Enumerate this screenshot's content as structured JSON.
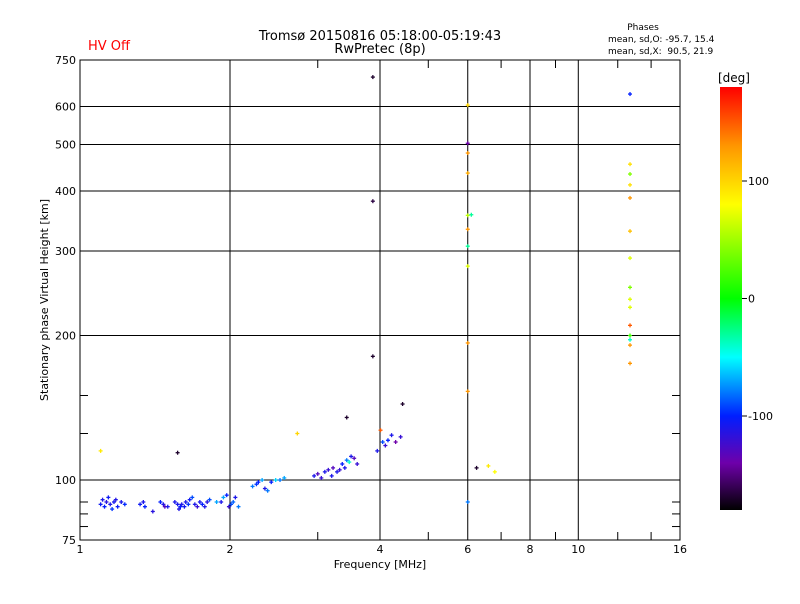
{
  "header": {
    "title": "Tromsø 20150816 05:18:00-05:19:43",
    "subtitle": "RwPretec (8p)",
    "hv_status": "HV Off",
    "hv_color": "#ff0000",
    "phases": {
      "heading": "Phases",
      "o_line": "mean, sd,O: -95.7, 15.4",
      "x_line": "mean, sd,X:  90.5, 21.9"
    }
  },
  "chart_data": {
    "type": "scatter",
    "title": "Tromsø 20150816 05:18:00-05:19:43",
    "xlabel": "Frequency [MHz]",
    "ylabel": "Stationary phase Virtual Height [km]",
    "xscale": "log",
    "yscale": "log",
    "xlim": [
      1,
      16
    ],
    "ylim": [
      75,
      750
    ],
    "grid": true,
    "xticks": [
      1,
      2,
      4,
      6,
      8,
      10,
      16
    ],
    "xtick_labels": [
      "1",
      "2",
      "4",
      "6",
      "8",
      "10",
      "16"
    ],
    "xgrid": [
      2,
      4,
      6,
      8,
      10
    ],
    "yticks": [
      75,
      100,
      200,
      300,
      400,
      500,
      600,
      750
    ],
    "ytick_labels": [
      "75",
      "100",
      "200",
      "300",
      "400",
      "500",
      "600",
      "750"
    ],
    "ygrid": [
      100,
      200,
      300,
      400,
      500,
      600
    ],
    "colorbar": {
      "label": "[deg]",
      "range": [
        -180,
        180
      ],
      "ticks": [
        100,
        0,
        -100
      ],
      "tick_labels": [
        "100",
        "0",
        "-100"
      ]
    },
    "point_fields": [
      "frequency_mhz",
      "height_km",
      "phase_deg"
    ],
    "points": [
      [
        1.1,
        89,
        -105
      ],
      [
        1.11,
        91,
        -110
      ],
      [
        1.12,
        88,
        -100
      ],
      [
        1.13,
        90,
        -115
      ],
      [
        1.14,
        92,
        -105
      ],
      [
        1.15,
        89,
        -110
      ],
      [
        1.16,
        87,
        -95
      ],
      [
        1.17,
        90,
        -108
      ],
      [
        1.18,
        91,
        -112
      ],
      [
        1.19,
        88,
        -104
      ],
      [
        1.21,
        90,
        -110
      ],
      [
        1.23,
        89,
        -98
      ],
      [
        1.32,
        89,
        -105
      ],
      [
        1.34,
        90,
        -110
      ],
      [
        1.35,
        88,
        -100
      ],
      [
        1.4,
        86,
        -115
      ],
      [
        1.45,
        90,
        -100
      ],
      [
        1.47,
        89,
        -112
      ],
      [
        1.48,
        88,
        -130
      ],
      [
        1.5,
        88,
        -110
      ],
      [
        1.55,
        90,
        -110
      ],
      [
        1.57,
        89,
        -108
      ],
      [
        1.58,
        87,
        -112
      ],
      [
        1.59,
        88,
        -100
      ],
      [
        1.6,
        89,
        -110
      ],
      [
        1.62,
        88,
        -106
      ],
      [
        1.63,
        90,
        -110
      ],
      [
        1.65,
        89,
        -95
      ],
      [
        1.66,
        91,
        -105
      ],
      [
        1.68,
        92,
        -90
      ],
      [
        1.7,
        89,
        -110
      ],
      [
        1.72,
        88,
        -120
      ],
      [
        1.74,
        90,
        -108
      ],
      [
        1.76,
        89,
        -100
      ],
      [
        1.78,
        88,
        -110
      ],
      [
        1.8,
        90,
        -115
      ],
      [
        1.82,
        91,
        -90
      ],
      [
        1.88,
        90,
        -70
      ],
      [
        1.92,
        90,
        -110
      ],
      [
        1.94,
        92,
        -70
      ],
      [
        1.97,
        93,
        -100
      ],
      [
        1.99,
        88,
        -120
      ],
      [
        2.01,
        89,
        -90
      ],
      [
        2.03,
        90,
        -85
      ],
      [
        2.05,
        92,
        -110
      ],
      [
        2.08,
        88,
        -80
      ],
      [
        2.22,
        97,
        -80
      ],
      [
        2.26,
        98,
        -95
      ],
      [
        2.28,
        99,
        -100
      ],
      [
        2.32,
        100,
        -70
      ],
      [
        2.35,
        96,
        -110
      ],
      [
        2.38,
        95,
        -80
      ],
      [
        2.42,
        99,
        -100
      ],
      [
        2.47,
        100,
        -60
      ],
      [
        2.52,
        100,
        -80
      ],
      [
        2.57,
        101,
        -70
      ],
      [
        2.95,
        102,
        -110
      ],
      [
        3.0,
        103,
        -130
      ],
      [
        3.05,
        101,
        -120
      ],
      [
        3.1,
        104,
        -110
      ],
      [
        3.15,
        105,
        -120
      ],
      [
        3.2,
        102,
        -110
      ],
      [
        3.22,
        106,
        -130
      ],
      [
        3.28,
        104,
        -110
      ],
      [
        3.32,
        105,
        -120
      ],
      [
        3.36,
        108,
        -100
      ],
      [
        3.4,
        106,
        -110
      ],
      [
        3.43,
        110,
        -80
      ],
      [
        3.47,
        109,
        -40
      ],
      [
        3.5,
        112,
        -110
      ],
      [
        3.55,
        111,
        -130
      ],
      [
        3.6,
        108,
        -120
      ],
      [
        3.95,
        115,
        -110
      ],
      [
        4.05,
        120,
        -90
      ],
      [
        4.1,
        118,
        -120
      ],
      [
        4.15,
        121,
        -100
      ],
      [
        4.22,
        124,
        -110
      ],
      [
        4.3,
        120,
        -140
      ],
      [
        4.4,
        123,
        -120
      ],
      [
        1.1,
        115,
        90
      ],
      [
        1.57,
        114,
        -170
      ],
      [
        2.73,
        125,
        100
      ],
      [
        3.43,
        135,
        -170
      ],
      [
        3.87,
        181,
        -170
      ],
      [
        3.87,
        381,
        -165
      ],
      [
        3.87,
        691,
        -170
      ],
      [
        4.44,
        144,
        -170
      ],
      [
        4.01,
        127,
        150
      ],
      [
        6.0,
        604,
        100
      ],
      [
        6.0,
        503,
        -140
      ],
      [
        6.0,
        480,
        130
      ],
      [
        6.0,
        436,
        120
      ],
      [
        6.0,
        356,
        60
      ],
      [
        6.1,
        357,
        -30
      ],
      [
        6.0,
        333,
        130
      ],
      [
        6.0,
        307,
        -30
      ],
      [
        6.0,
        279,
        70
      ],
      [
        6.0,
        193,
        130
      ],
      [
        6.0,
        153,
        130
      ],
      [
        6.0,
        90,
        -80
      ],
      [
        6.25,
        106,
        -170
      ],
      [
        6.6,
        107,
        90
      ],
      [
        6.8,
        104,
        80
      ],
      [
        12.7,
        637,
        -100
      ],
      [
        12.7,
        455,
        95
      ],
      [
        12.7,
        434,
        40
      ],
      [
        12.7,
        412,
        95
      ],
      [
        12.7,
        387,
        130
      ],
      [
        12.7,
        330,
        110
      ],
      [
        12.7,
        290,
        70
      ],
      [
        12.7,
        252,
        40
      ],
      [
        12.7,
        238,
        70
      ],
      [
        12.7,
        229,
        70
      ],
      [
        12.7,
        210,
        150
      ],
      [
        12.7,
        200,
        20
      ],
      [
        12.7,
        196,
        -40
      ],
      [
        12.7,
        191,
        130
      ],
      [
        12.7,
        175,
        130
      ]
    ]
  }
}
